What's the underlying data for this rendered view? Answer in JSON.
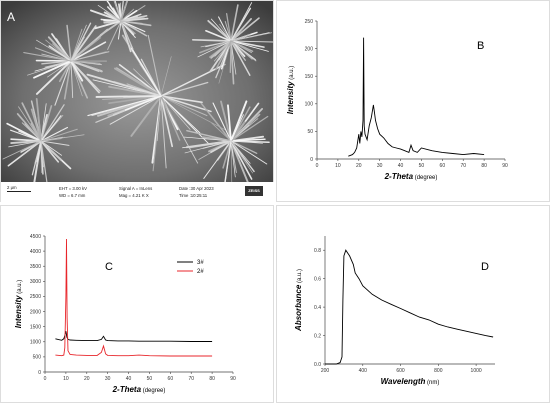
{
  "panels": {
    "A": {
      "letter": "A",
      "sem": {
        "scale": "2 μm",
        "eht": "EHT =  3.00 kV",
        "wd": "WD =  6.7 mm",
        "signal": "Signal A = InLens",
        "mag": "Mag =    4.21 K X",
        "date": "Date :30 Apr 2023",
        "time": "Time :10:25:11",
        "logo": "ZEISS"
      }
    },
    "B": {
      "letter": "B"
    },
    "C": {
      "letter": "C"
    },
    "D": {
      "letter": "D"
    }
  },
  "colors": {
    "black": "#000000",
    "red": "#e8262b"
  },
  "chart_data": [
    {
      "id": "B",
      "type": "line",
      "title": "",
      "xlabel": "2-Theta",
      "xunit": "(degree)",
      "ylabel": "Intensity",
      "yunit": "(a.u.)",
      "xlim": [
        0,
        90
      ],
      "ylim": [
        0,
        250
      ],
      "xticks": [
        0,
        10,
        20,
        30,
        40,
        50,
        60,
        70,
        80,
        90
      ],
      "yticks": [
        0,
        50,
        100,
        150,
        200,
        250
      ],
      "xtick_labels": [
        "0",
        "10",
        "20",
        "30",
        "40",
        "50",
        "60",
        "70",
        "80",
        "90"
      ],
      "ytick_labels": [
        "0",
        "50",
        "100",
        "150",
        "200",
        "250"
      ],
      "grid": false,
      "series": [
        {
          "color": "#000000",
          "x": [
            15,
            17,
            18,
            19,
            20,
            20.5,
            21,
            21.5,
            22,
            22.3,
            22.6,
            23,
            24,
            25,
            26,
            27,
            27.5,
            28,
            29,
            30,
            32,
            34,
            36,
            38,
            40,
            42,
            44,
            45,
            46,
            48,
            50,
            55,
            60,
            65,
            70,
            75,
            80
          ],
          "y": [
            5,
            8,
            12,
            20,
            45,
            28,
            50,
            40,
            70,
            220,
            60,
            45,
            35,
            60,
            75,
            98,
            85,
            70,
            55,
            45,
            38,
            28,
            22,
            20,
            18,
            15,
            12,
            25,
            15,
            12,
            20,
            15,
            12,
            10,
            8,
            10,
            8
          ]
        }
      ]
    },
    {
      "id": "C",
      "type": "line",
      "title": "",
      "xlabel": "2-Theta",
      "xunit": "(degree)",
      "ylabel": "Intensity",
      "yunit": "(a.u.)",
      "xlim": [
        0,
        90
      ],
      "ylim": [
        0,
        4500
      ],
      "xticks": [
        0,
        10,
        20,
        30,
        40,
        50,
        60,
        70,
        80,
        90
      ],
      "yticks": [
        0,
        500,
        1000,
        1500,
        2000,
        2500,
        3000,
        3500,
        4000,
        4500
      ],
      "xtick_labels": [
        "0",
        "10",
        "20",
        "30",
        "40",
        "50",
        "60",
        "70",
        "80",
        "90"
      ],
      "ytick_labels": [
        "0",
        "500",
        "1000",
        "1500",
        "2000",
        "2500",
        "3000",
        "3500",
        "4000",
        "4500"
      ],
      "legend_position": "top-right",
      "grid": false,
      "series": [
        {
          "name": "3#",
          "color": "#000000",
          "x": [
            5,
            8,
            9,
            9.5,
            10,
            10.5,
            11,
            12,
            15,
            20,
            25,
            27,
            28,
            29,
            30,
            35,
            40,
            45,
            50,
            60,
            70,
            80
          ],
          "y": [
            1100,
            1050,
            1100,
            1200,
            1350,
            1150,
            1080,
            1060,
            1050,
            1040,
            1040,
            1080,
            1180,
            1060,
            1040,
            1030,
            1030,
            1020,
            1020,
            1020,
            1010,
            1010
          ]
        },
        {
          "name": "2#",
          "color": "#e8262b",
          "x": [
            5,
            8,
            9,
            9.5,
            10,
            10.3,
            10.6,
            11,
            12,
            15,
            20,
            25,
            27,
            28,
            29,
            30,
            35,
            40,
            45,
            50,
            60,
            70,
            80
          ],
          "y": [
            560,
            540,
            560,
            800,
            2500,
            4400,
            1800,
            700,
            580,
            560,
            550,
            550,
            650,
            860,
            600,
            550,
            540,
            540,
            560,
            540,
            530,
            530,
            530
          ]
        }
      ]
    },
    {
      "id": "D",
      "type": "line",
      "title": "",
      "xlabel": "Wavelength",
      "xunit": "(nm)",
      "ylabel": "Absorbance",
      "yunit": "(a.u.)",
      "xlim": [
        200,
        1100
      ],
      "ylim": [
        0,
        0.9
      ],
      "xticks": [
        200,
        400,
        600,
        800,
        1000
      ],
      "yticks": [
        0,
        0.2,
        0.4,
        0.6,
        0.8
      ],
      "xtick_labels": [
        "200",
        "400",
        "600",
        "800",
        "1000"
      ],
      "ytick_labels": [
        "0.0",
        "0.2",
        "0.4",
        "0.6",
        "0.8"
      ],
      "grid": false,
      "series": [
        {
          "color": "#000000",
          "x": [
            200,
            260,
            280,
            290,
            295,
            300,
            310,
            330,
            350,
            360,
            380,
            400,
            450,
            500,
            550,
            600,
            650,
            700,
            750,
            800,
            850,
            900,
            950,
            1000,
            1050,
            1090
          ],
          "y": [
            0.0,
            0.0,
            0.01,
            0.05,
            0.45,
            0.76,
            0.8,
            0.76,
            0.7,
            0.64,
            0.6,
            0.55,
            0.49,
            0.45,
            0.42,
            0.39,
            0.36,
            0.33,
            0.31,
            0.28,
            0.26,
            0.245,
            0.23,
            0.215,
            0.2,
            0.19
          ]
        }
      ]
    }
  ]
}
